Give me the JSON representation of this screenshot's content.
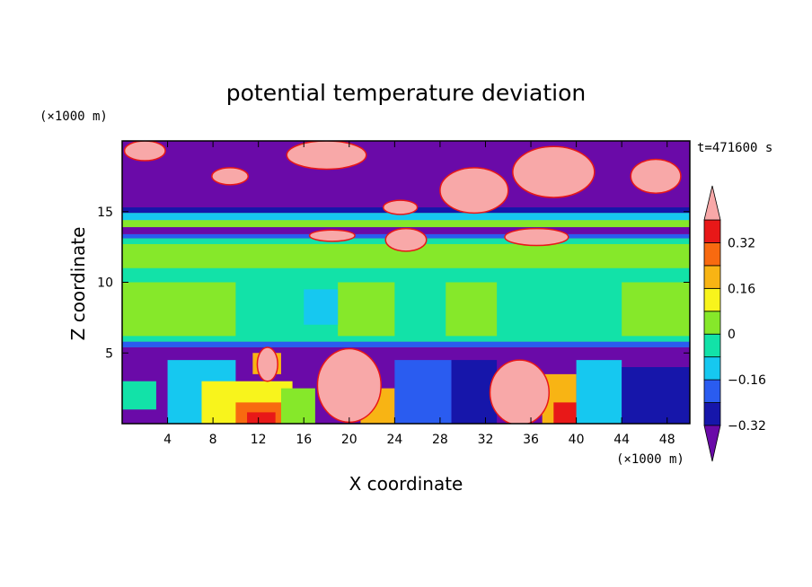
{
  "chart_data": {
    "type": "heatmap",
    "title": "potential temperature deviation",
    "xlabel": "X coordinate",
    "ylabel": "Z coordinate",
    "x_unit": "(×1000 m)",
    "y_unit": "(×1000 m)",
    "time_label": "t=471600 s",
    "xlim": [
      0,
      50
    ],
    "ylim": [
      0,
      20
    ],
    "x_ticks": [
      4,
      8,
      12,
      16,
      20,
      24,
      28,
      32,
      36,
      40,
      44,
      48
    ],
    "y_ticks": [
      5,
      10,
      15
    ],
    "colorbar": {
      "levels": [
        -0.4,
        -0.32,
        -0.24,
        -0.16,
        -0.08,
        0,
        0.08,
        0.16,
        0.24,
        0.32,
        0.4
      ],
      "tick_values": [
        0.32,
        0.16,
        0,
        -0.16,
        -0.32
      ],
      "tick_labels": [
        "0.32",
        "0.16",
        "0",
        "−0.16",
        "−0.32"
      ],
      "colors": [
        "#6a0aa8",
        "#1616aa",
        "#2a5cf0",
        "#16c8f0",
        "#12e2a8",
        "#86e82a",
        "#f8f41c",
        "#f8b414",
        "#f86a10",
        "#e81818",
        "#f8a8a8"
      ]
    },
    "regions": [
      {
        "x0": 0,
        "x1": 50,
        "z0": 0,
        "z1": 20,
        "level": 5
      },
      {
        "x0": 0,
        "x1": 50,
        "z0": 15.3,
        "z1": 20,
        "level": 0
      },
      {
        "x0": 0,
        "x1": 50,
        "z0": 14.9,
        "z1": 15.3,
        "level": 1
      },
      {
        "x0": 0,
        "x1": 50,
        "z0": 14.4,
        "z1": 14.9,
        "level": 3
      },
      {
        "x0": 0,
        "x1": 50,
        "z0": 13.4,
        "z1": 13.9,
        "level": 0
      },
      {
        "x0": 0,
        "x1": 50,
        "z0": 13.1,
        "z1": 13.4,
        "level": 2
      },
      {
        "x0": 0,
        "x1": 50,
        "z0": 12.7,
        "z1": 13.1,
        "level": 4
      },
      {
        "x0": 0,
        "x1": 50,
        "z0": 11.0,
        "z1": 12.7,
        "level": 5
      },
      {
        "x0": 0,
        "x1": 50,
        "z0": 5.8,
        "z1": 11.0,
        "level": 4
      },
      {
        "x0": 0,
        "x1": 10,
        "z0": 6.2,
        "z1": 10.0,
        "level": 5
      },
      {
        "x0": 19,
        "x1": 24,
        "z0": 6.2,
        "z1": 10.0,
        "level": 5
      },
      {
        "x0": 28.5,
        "x1": 33,
        "z0": 6.2,
        "z1": 10.0,
        "level": 5
      },
      {
        "x0": 44,
        "x1": 50,
        "z0": 6.2,
        "z1": 10.0,
        "level": 5
      },
      {
        "x0": 16,
        "x1": 19,
        "z0": 7.0,
        "z1": 9.5,
        "level": 3
      },
      {
        "x0": 0,
        "x1": 50,
        "z0": 5.4,
        "z1": 5.8,
        "level": 2
      },
      {
        "x0": 0,
        "x1": 50,
        "z0": 0,
        "z1": 5.4,
        "level": 0
      },
      {
        "x0": 4,
        "x1": 10,
        "z0": 0,
        "z1": 4.5,
        "level": 3
      },
      {
        "x0": 7,
        "x1": 15,
        "z0": 0,
        "z1": 3.0,
        "level": 6
      },
      {
        "x0": 10,
        "x1": 15,
        "z0": 0,
        "z1": 1.5,
        "level": 8
      },
      {
        "x0": 11,
        "x1": 13.5,
        "z0": 0,
        "z1": 0.8,
        "level": 9
      },
      {
        "x0": 11.5,
        "x1": 14,
        "z0": 3.5,
        "z1": 5.0,
        "level": 7
      },
      {
        "x0": 14,
        "x1": 17,
        "z0": 0,
        "z1": 2.5,
        "level": 5
      },
      {
        "x0": 21,
        "x1": 24,
        "z0": 0,
        "z1": 2.5,
        "level": 7
      },
      {
        "x0": 24,
        "x1": 29,
        "z0": 0,
        "z1": 4.5,
        "level": 2
      },
      {
        "x0": 29,
        "x1": 33,
        "z0": 0,
        "z1": 4.5,
        "level": 1
      },
      {
        "x0": 37,
        "x1": 40,
        "z0": 0,
        "z1": 3.5,
        "level": 7
      },
      {
        "x0": 38,
        "x1": 41,
        "z0": 0,
        "z1": 1.5,
        "level": 9
      },
      {
        "x0": 40,
        "x1": 44,
        "z0": 0,
        "z1": 4.5,
        "level": 3
      },
      {
        "x0": 44,
        "x1": 50,
        "z0": 0,
        "z1": 4.0,
        "level": 1
      },
      {
        "x0": 0,
        "x1": 3,
        "z0": 1.0,
        "z1": 3.0,
        "level": 4
      }
    ],
    "blobs": [
      {
        "cx": 20,
        "cz": 2.7,
        "rx": 2.8,
        "rz": 2.6,
        "level": 10
      },
      {
        "cx": 35,
        "cz": 2.2,
        "rx": 2.6,
        "rz": 2.3,
        "level": 10
      },
      {
        "cx": 12.8,
        "cz": 4.2,
        "rx": 0.9,
        "rz": 1.2,
        "level": 10
      },
      {
        "cx": 18,
        "cz": 19.0,
        "rx": 3.5,
        "rz": 1.0,
        "level": 10
      },
      {
        "cx": 31,
        "cz": 16.5,
        "rx": 3.0,
        "rz": 1.6,
        "level": 10
      },
      {
        "cx": 38,
        "cz": 17.8,
        "rx": 3.6,
        "rz": 1.8,
        "level": 10
      },
      {
        "cx": 36.5,
        "cz": 13.2,
        "rx": 2.8,
        "rz": 0.6,
        "level": 10
      },
      {
        "cx": 25,
        "cz": 13.0,
        "rx": 1.8,
        "rz": 0.8,
        "level": 10
      },
      {
        "cx": 47,
        "cz": 17.5,
        "rx": 2.2,
        "rz": 1.2,
        "level": 10
      },
      {
        "cx": 2,
        "cz": 19.3,
        "rx": 1.8,
        "rz": 0.7,
        "level": 10
      },
      {
        "cx": 9.5,
        "cz": 17.5,
        "rx": 1.6,
        "rz": 0.6,
        "level": 10
      },
      {
        "cx": 18.5,
        "cz": 13.3,
        "rx": 2.0,
        "rz": 0.4,
        "level": 10
      },
      {
        "cx": 24.5,
        "cz": 15.3,
        "rx": 1.5,
        "rz": 0.5,
        "level": 10
      }
    ]
  }
}
